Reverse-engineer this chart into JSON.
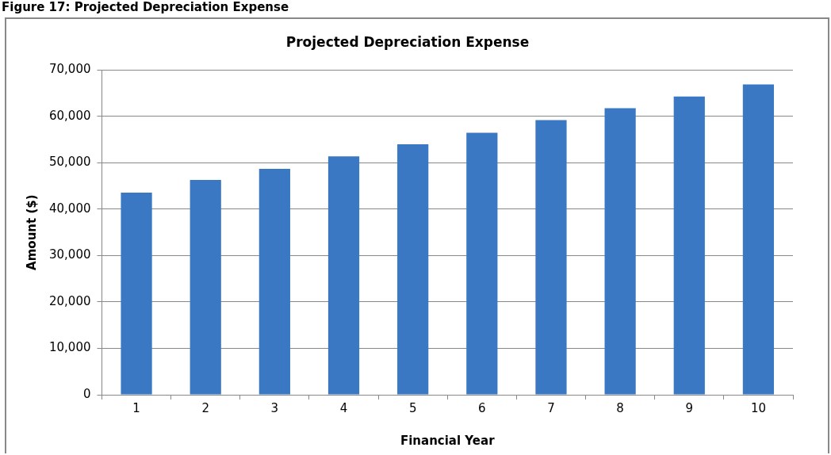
{
  "chart_data": {
    "type": "bar",
    "title": "Projected Depreciation Expense",
    "xlabel": "Financial Year",
    "ylabel": "Amount ($)",
    "annotations": [
      "Figure 17: Projected Depreciation Expense"
    ],
    "categories": [
      "1",
      "2",
      "3",
      "4",
      "5",
      "6",
      "7",
      "8",
      "9",
      "10"
    ],
    "values": [
      43600,
      46300,
      48700,
      51400,
      54000,
      56500,
      59200,
      61800,
      64300,
      66900
    ],
    "color": "#3a78c4",
    "ylim": [
      0,
      70000
    ],
    "yticks": [
      {
        "value": 0,
        "label": "0"
      },
      {
        "value": 10000,
        "label": "10,000"
      },
      {
        "value": 20000,
        "label": "20,000"
      },
      {
        "value": 30000,
        "label": "30,000"
      },
      {
        "value": 40000,
        "label": "40,000"
      },
      {
        "value": 50000,
        "label": "50,000"
      },
      {
        "value": 60000,
        "label": "60,000"
      },
      {
        "value": 70000,
        "label": "70,000"
      }
    ],
    "grid": "y",
    "legend": false
  }
}
